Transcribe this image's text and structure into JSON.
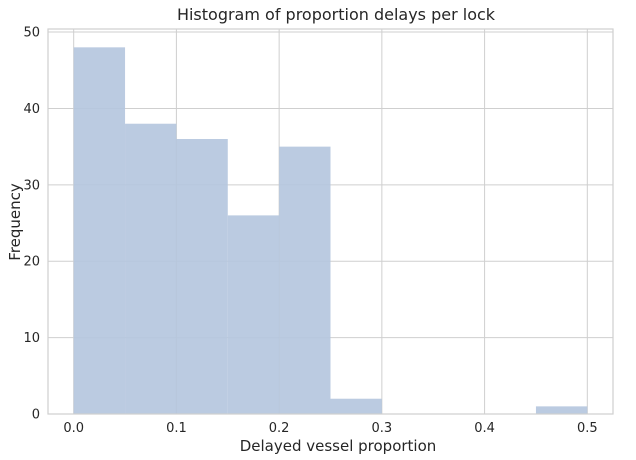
{
  "chart_data": {
    "type": "bar",
    "title": "Histogram of proportion delays per lock",
    "xlabel": "Delayed vessel proportion",
    "ylabel": "Frequency",
    "xlim": [
      -0.025,
      0.525
    ],
    "ylim": [
      0,
      50.4
    ],
    "xticks": [
      0.0,
      0.1,
      0.2,
      0.3,
      0.4,
      0.5
    ],
    "xtick_labels": [
      "0.0",
      "0.1",
      "0.2",
      "0.3",
      "0.4",
      "0.5"
    ],
    "yticks": [
      0,
      10,
      20,
      30,
      40,
      50
    ],
    "ytick_labels": [
      "0",
      "10",
      "20",
      "30",
      "40",
      "50"
    ],
    "bins": [
      {
        "x0": 0.0,
        "x1": 0.05,
        "value": 48
      },
      {
        "x0": 0.05,
        "x1": 0.1,
        "value": 38
      },
      {
        "x0": 0.1,
        "x1": 0.15,
        "value": 36
      },
      {
        "x0": 0.15,
        "x1": 0.2,
        "value": 26
      },
      {
        "x0": 0.2,
        "x1": 0.25,
        "value": 35
      },
      {
        "x0": 0.25,
        "x1": 0.3,
        "value": 2
      },
      {
        "x0": 0.3,
        "x1": 0.35,
        "value": 0
      },
      {
        "x0": 0.35,
        "x1": 0.4,
        "value": 0
      },
      {
        "x0": 0.4,
        "x1": 0.45,
        "value": 0
      },
      {
        "x0": 0.45,
        "x1": 0.5,
        "value": 1
      }
    ],
    "grid": true,
    "colors": {
      "bar": "#b4c5de",
      "grid": "#cfcfcf",
      "axis_frame": "#cfcfcf"
    }
  }
}
